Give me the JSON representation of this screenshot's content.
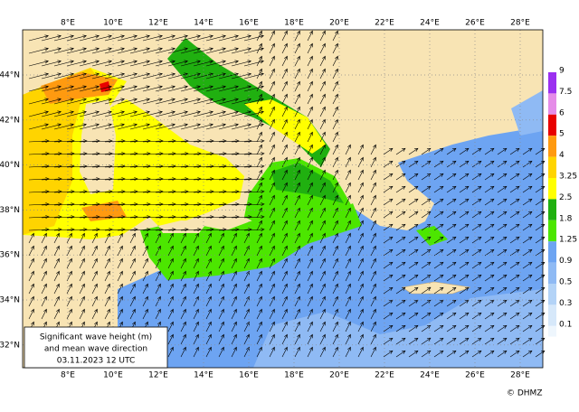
{
  "map": {
    "lon_labels": [
      "8°E",
      "10°E",
      "12°E",
      "14°E",
      "16°E",
      "18°E",
      "20°E",
      "22°E",
      "24°E",
      "26°E",
      "28°E"
    ],
    "lat_labels": [
      "44°N",
      "42°N",
      "40°N",
      "38°N",
      "36°N",
      "34°N",
      "32°N"
    ],
    "colorbar": {
      "labels": [
        "9",
        "7.5",
        "6",
        "5",
        "4",
        "3.25",
        "2.5",
        "1.8",
        "1.25",
        "0.9",
        "0.5",
        "0.3",
        "0.1"
      ],
      "colors": [
        "#9b30f0",
        "#e58ce8",
        "#e80000",
        "#ff9a10",
        "#ffd400",
        "#ffff00",
        "#20b010",
        "#4ce600",
        "#6da4f2",
        "#8fbaf4",
        "#b3d3f7",
        "#d6e8fa"
      ]
    },
    "legend": {
      "lines": [
        "Significant wave height (m)",
        "and mean wave direction",
        "03.11.2023 12  UTC"
      ]
    },
    "copyright": "© DHMZ"
  }
}
